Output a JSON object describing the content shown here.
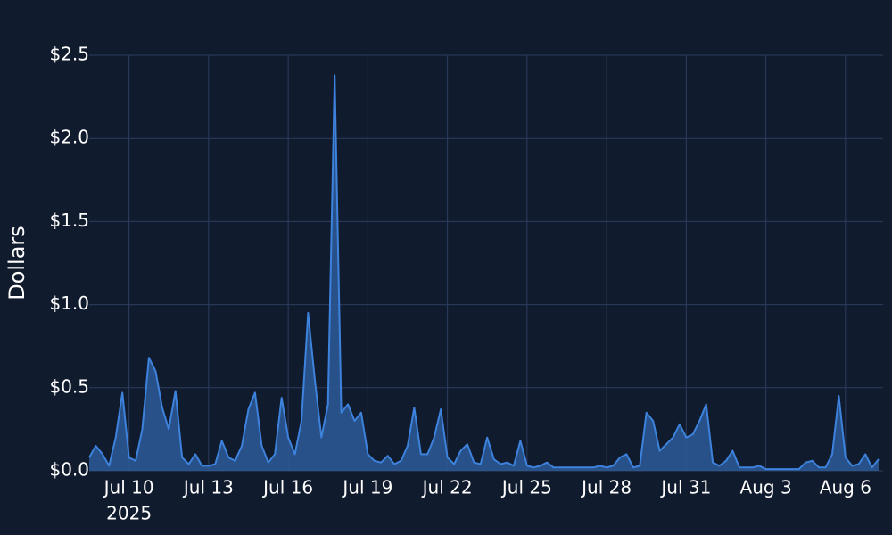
{
  "chart_data": {
    "type": "area",
    "y_label": "Dollars",
    "year_label": "2025",
    "line_color": "#3d82dc",
    "fill_color": "#2b5a98",
    "grid": true,
    "xlim": [
      "2025-07-08T12:00",
      "2025-08-07T10:00"
    ],
    "xticks": [
      {
        "value": "2025-07-10",
        "label": "Jul 10"
      },
      {
        "value": "2025-07-13",
        "label": "Jul 13"
      },
      {
        "value": "2025-07-16",
        "label": "Jul 16"
      },
      {
        "value": "2025-07-19",
        "label": "Jul 19"
      },
      {
        "value": "2025-07-22",
        "label": "Jul 22"
      },
      {
        "value": "2025-07-25",
        "label": "Jul 25"
      },
      {
        "value": "2025-07-28",
        "label": "Jul 28"
      },
      {
        "value": "2025-07-31",
        "label": "Jul 31"
      },
      {
        "value": "2025-08-03",
        "label": "Aug 3"
      },
      {
        "value": "2025-08-06",
        "label": "Aug 6"
      }
    ],
    "ylim": [
      0,
      2.5
    ],
    "yticks": [
      {
        "value": 0,
        "label": "$0.0"
      },
      {
        "value": 0.5,
        "label": "$0.5"
      },
      {
        "value": 1,
        "label": "$1.0"
      },
      {
        "value": 1.5,
        "label": "$1.5"
      },
      {
        "value": 2,
        "label": "$2.0"
      },
      {
        "value": 2.5,
        "label": "$2.5"
      }
    ],
    "x": [
      "2025-07-08T12:00",
      "2025-07-08T18:00",
      "2025-07-09T00:00",
      "2025-07-09T06:00",
      "2025-07-09T12:00",
      "2025-07-09T18:00",
      "2025-07-10T00:00",
      "2025-07-10T06:00",
      "2025-07-10T12:00",
      "2025-07-10T18:00",
      "2025-07-11T00:00",
      "2025-07-11T06:00",
      "2025-07-11T12:00",
      "2025-07-11T18:00",
      "2025-07-12T00:00",
      "2025-07-12T06:00",
      "2025-07-12T12:00",
      "2025-07-12T18:00",
      "2025-07-13T00:00",
      "2025-07-13T06:00",
      "2025-07-13T12:00",
      "2025-07-13T18:00",
      "2025-07-14T00:00",
      "2025-07-14T06:00",
      "2025-07-14T12:00",
      "2025-07-14T18:00",
      "2025-07-15T00:00",
      "2025-07-15T06:00",
      "2025-07-15T12:00",
      "2025-07-15T18:00",
      "2025-07-16T00:00",
      "2025-07-16T06:00",
      "2025-07-16T12:00",
      "2025-07-16T18:00",
      "2025-07-17T00:00",
      "2025-07-17T06:00",
      "2025-07-17T12:00",
      "2025-07-17T18:00",
      "2025-07-18T00:00",
      "2025-07-18T06:00",
      "2025-07-18T12:00",
      "2025-07-18T18:00",
      "2025-07-19T00:00",
      "2025-07-19T06:00",
      "2025-07-19T12:00",
      "2025-07-19T18:00",
      "2025-07-20T00:00",
      "2025-07-20T06:00",
      "2025-07-20T12:00",
      "2025-07-20T18:00",
      "2025-07-21T00:00",
      "2025-07-21T06:00",
      "2025-07-21T12:00",
      "2025-07-21T18:00",
      "2025-07-22T00:00",
      "2025-07-22T06:00",
      "2025-07-22T12:00",
      "2025-07-22T18:00",
      "2025-07-23T00:00",
      "2025-07-23T06:00",
      "2025-07-23T12:00",
      "2025-07-23T18:00",
      "2025-07-24T00:00",
      "2025-07-24T06:00",
      "2025-07-24T12:00",
      "2025-07-24T18:00",
      "2025-07-25T00:00",
      "2025-07-25T06:00",
      "2025-07-25T12:00",
      "2025-07-25T18:00",
      "2025-07-26T00:00",
      "2025-07-26T06:00",
      "2025-07-26T12:00",
      "2025-07-26T18:00",
      "2025-07-27T00:00",
      "2025-07-27T06:00",
      "2025-07-27T12:00",
      "2025-07-27T18:00",
      "2025-07-28T00:00",
      "2025-07-28T06:00",
      "2025-07-28T12:00",
      "2025-07-28T18:00",
      "2025-07-29T00:00",
      "2025-07-29T06:00",
      "2025-07-29T12:00",
      "2025-07-29T18:00",
      "2025-07-30T00:00",
      "2025-07-30T06:00",
      "2025-07-30T12:00",
      "2025-07-30T18:00",
      "2025-07-31T00:00",
      "2025-07-31T06:00",
      "2025-07-31T12:00",
      "2025-07-31T18:00",
      "2025-08-01T00:00",
      "2025-08-01T06:00",
      "2025-08-01T12:00",
      "2025-08-01T18:00",
      "2025-08-02T00:00",
      "2025-08-02T06:00",
      "2025-08-02T12:00",
      "2025-08-02T18:00",
      "2025-08-03T00:00",
      "2025-08-03T06:00",
      "2025-08-03T12:00",
      "2025-08-03T18:00",
      "2025-08-04T00:00",
      "2025-08-04T06:00",
      "2025-08-04T12:00",
      "2025-08-04T18:00",
      "2025-08-05T00:00",
      "2025-08-05T06:00",
      "2025-08-05T12:00",
      "2025-08-05T18:00",
      "2025-08-06T00:00",
      "2025-08-06T06:00",
      "2025-08-06T12:00",
      "2025-08-06T18:00",
      "2025-08-07T00:00",
      "2025-08-07T06:00"
    ],
    "values": [
      0.08,
      0.15,
      0.1,
      0.03,
      0.2,
      0.47,
      0.08,
      0.06,
      0.25,
      0.68,
      0.6,
      0.38,
      0.25,
      0.48,
      0.08,
      0.04,
      0.1,
      0.03,
      0.03,
      0.04,
      0.18,
      0.08,
      0.06,
      0.15,
      0.37,
      0.47,
      0.15,
      0.05,
      0.1,
      0.44,
      0.2,
      0.1,
      0.3,
      0.95,
      0.55,
      0.2,
      0.4,
      2.38,
      0.35,
      0.4,
      0.3,
      0.35,
      0.1,
      0.06,
      0.05,
      0.09,
      0.04,
      0.06,
      0.15,
      0.38,
      0.1,
      0.1,
      0.2,
      0.37,
      0.08,
      0.04,
      0.12,
      0.16,
      0.05,
      0.04,
      0.2,
      0.07,
      0.04,
      0.05,
      0.03,
      0.18,
      0.03,
      0.02,
      0.03,
      0.05,
      0.02,
      0.02,
      0.02,
      0.02,
      0.02,
      0.02,
      0.02,
      0.03,
      0.02,
      0.03,
      0.08,
      0.1,
      0.02,
      0.03,
      0.35,
      0.3,
      0.12,
      0.16,
      0.2,
      0.28,
      0.2,
      0.22,
      0.3,
      0.4,
      0.05,
      0.03,
      0.06,
      0.12,
      0.02,
      0.02,
      0.02,
      0.03,
      0.01,
      0.01,
      0.01,
      0.01,
      0.01,
      0.01,
      0.05,
      0.06,
      0.02,
      0.02,
      0.1,
      0.45,
      0.08,
      0.03,
      0.04,
      0.1,
      0.02,
      0.07
    ]
  }
}
